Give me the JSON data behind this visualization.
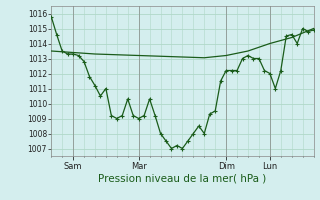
{
  "xlabel": "Pression niveau de la mer( hPa )",
  "bg_color": "#d4eeee",
  "grid_color": "#b0d8c8",
  "line_color": "#1a5c1a",
  "ylim": [
    1006.5,
    1016.5
  ],
  "yticks": [
    1007,
    1008,
    1009,
    1010,
    1011,
    1012,
    1013,
    1014,
    1015,
    1016
  ],
  "xlim": [
    0,
    96
  ],
  "xtick_positions": [
    8,
    32,
    64,
    80
  ],
  "xtick_labels": [
    "Sam",
    "Mar",
    "Dim",
    "Lun"
  ],
  "series1_x": [
    0,
    2,
    4,
    6,
    8,
    10,
    12,
    14,
    16,
    18,
    20,
    22,
    24,
    26,
    28,
    30,
    32,
    34,
    36,
    38,
    40,
    42,
    44,
    46,
    48,
    50,
    52,
    54,
    56,
    58,
    60,
    62,
    64,
    66,
    68,
    70,
    72,
    74,
    76,
    78,
    80,
    82,
    84,
    86,
    88,
    90,
    92,
    94,
    96
  ],
  "series1_y": [
    1015.8,
    1014.6,
    1013.5,
    1013.3,
    1013.3,
    1013.2,
    1012.8,
    1011.8,
    1011.2,
    1010.5,
    1011.0,
    1009.2,
    1009.0,
    1009.2,
    1010.3,
    1009.2,
    1009.0,
    1009.2,
    1010.3,
    1009.2,
    1008.0,
    1007.5,
    1007.0,
    1007.2,
    1007.0,
    1007.5,
    1008.0,
    1008.5,
    1008.0,
    1009.3,
    1009.5,
    1011.5,
    1012.2,
    1012.2,
    1012.2,
    1013.0,
    1013.2,
    1013.0,
    1013.0,
    1012.2,
    1012.0,
    1011.0,
    1012.2,
    1014.5,
    1014.6,
    1014.0,
    1015.0,
    1014.8,
    1014.9
  ],
  "series2_x": [
    0,
    8,
    16,
    24,
    32,
    40,
    48,
    56,
    64,
    72,
    80,
    88,
    96
  ],
  "series2_y": [
    1013.5,
    1013.4,
    1013.3,
    1013.25,
    1013.2,
    1013.15,
    1013.1,
    1013.05,
    1013.2,
    1013.5,
    1014.0,
    1014.4,
    1015.0
  ]
}
